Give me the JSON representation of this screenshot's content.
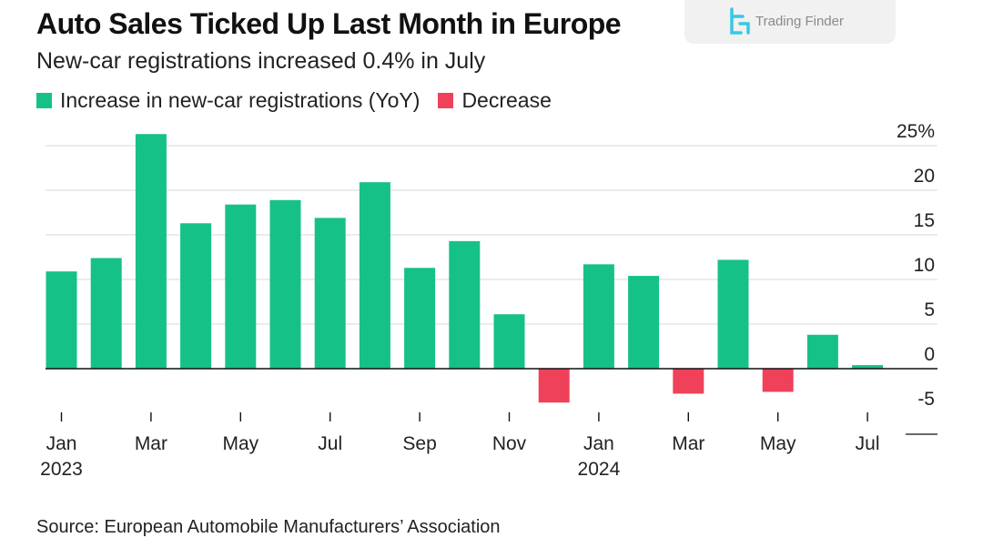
{
  "title": "Auto Sales Ticked Up Last Month in Europe",
  "subtitle": "New-car registrations increased 0.4% in July",
  "legend": {
    "increase_label": "Increase in new-car registrations (YoY)",
    "decrease_label": "Decrease"
  },
  "colors": {
    "increase": "#16c187",
    "decrease": "#f0415a",
    "grid": "#d9d9d9",
    "axis": "#111111"
  },
  "watermark": {
    "text": "Trading Finder"
  },
  "source": "Source: European Automobile Manufacturers’ Association",
  "chart_data": {
    "type": "bar",
    "title": "Auto Sales Ticked Up Last Month in Europe",
    "subtitle": "New-car registrations increased 0.4% in July",
    "xlabel": "",
    "ylabel": "",
    "ylim": [
      -5,
      25
    ],
    "yticks": [
      25,
      20,
      15,
      10,
      5,
      0,
      -5
    ],
    "ytick_labels": [
      "25%",
      "20",
      "15",
      "10",
      "5",
      "0",
      "-5"
    ],
    "grid": true,
    "y_axis_position": "right",
    "categories": [
      "2023-01",
      "2023-02",
      "2023-03",
      "2023-04",
      "2023-05",
      "2023-06",
      "2023-07",
      "2023-08",
      "2023-09",
      "2023-10",
      "2023-11",
      "2023-12",
      "2024-01",
      "2024-02",
      "2024-03",
      "2024-04",
      "2024-05",
      "2024-06",
      "2024-07"
    ],
    "values": [
      10.9,
      12.4,
      26.3,
      16.3,
      18.4,
      18.9,
      16.9,
      20.9,
      11.3,
      14.3,
      6.1,
      -3.8,
      11.7,
      10.4,
      -2.8,
      12.2,
      -2.6,
      3.8,
      0.4
    ],
    "tick_labels": [
      {
        "index": 0,
        "month": "Jan",
        "year": "2023"
      },
      {
        "index": 2,
        "month": "Mar",
        "year": ""
      },
      {
        "index": 4,
        "month": "May",
        "year": ""
      },
      {
        "index": 6,
        "month": "Jul",
        "year": ""
      },
      {
        "index": 8,
        "month": "Sep",
        "year": ""
      },
      {
        "index": 10,
        "month": "Nov",
        "year": ""
      },
      {
        "index": 12,
        "month": "Jan",
        "year": "2024"
      },
      {
        "index": 14,
        "month": "Mar",
        "year": ""
      },
      {
        "index": 16,
        "month": "May",
        "year": ""
      },
      {
        "index": 18,
        "month": "Jul",
        "year": ""
      }
    ],
    "legend": [
      "Increase in new-car registrations (YoY)",
      "Decrease"
    ]
  }
}
